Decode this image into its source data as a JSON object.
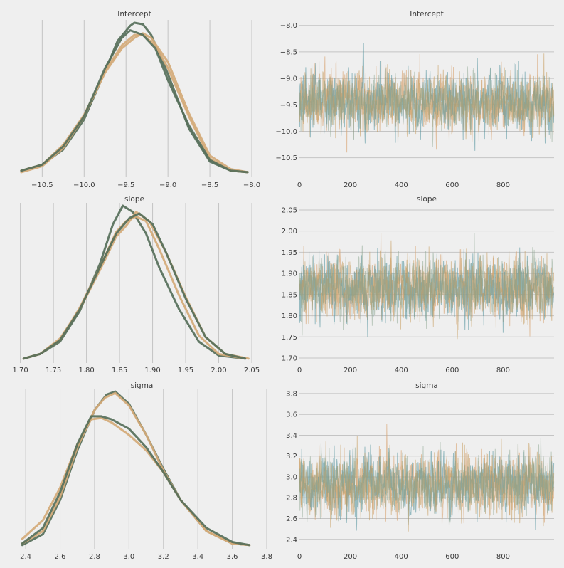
{
  "colors": {
    "background": "#efefef",
    "chain_1": "#d8a87a",
    "chain_2": "#4f8f9a",
    "chain_3": "#c69c5e",
    "chain_4": "#8aa38d",
    "kde_dark": "#566f5a",
    "kde_light": "#d4aa78"
  },
  "chart_data": [
    {
      "id": "intercept-density",
      "type": "line",
      "title": "Intercept",
      "xlim": [
        -10.8,
        -8.0
      ],
      "ylim": [
        0,
        1.0
      ],
      "xticks": [
        -10.5,
        -10.0,
        -9.5,
        -9.0,
        -8.5,
        -8.0
      ],
      "tick_labels": [
        "−10.5",
        "−10.0",
        "−9.5",
        "−9.0",
        "−8.5",
        "−8.0"
      ],
      "grid": "vertical",
      "series": [
        {
          "color": "#566f5a",
          "x": [
            -10.75,
            -10.5,
            -10.25,
            -10.0,
            -9.75,
            -9.6,
            -9.45,
            -9.4,
            -9.3,
            -9.2,
            -9.0,
            -8.75,
            -8.5,
            -8.25,
            -8.05
          ],
          "y": [
            0.02,
            0.06,
            0.16,
            0.36,
            0.68,
            0.88,
            0.98,
            1.0,
            0.99,
            0.92,
            0.66,
            0.3,
            0.08,
            0.02,
            0.01
          ]
        },
        {
          "color": "#d4aa78",
          "x": [
            -10.75,
            -10.5,
            -10.25,
            -10.0,
            -9.75,
            -9.55,
            -9.4,
            -9.3,
            -9.15,
            -9.0,
            -8.75,
            -8.5,
            -8.25,
            -8.05
          ],
          "y": [
            0.01,
            0.05,
            0.17,
            0.38,
            0.68,
            0.85,
            0.92,
            0.92,
            0.85,
            0.7,
            0.38,
            0.1,
            0.02,
            0.01
          ]
        },
        {
          "color": "#d4aa78",
          "x": [
            -10.75,
            -10.5,
            -10.25,
            -10.0,
            -9.75,
            -9.55,
            -9.4,
            -9.3,
            -9.2,
            -9.0,
            -8.75,
            -8.5,
            -8.25,
            -8.05
          ],
          "y": [
            0.02,
            0.06,
            0.19,
            0.39,
            0.67,
            0.83,
            0.9,
            0.93,
            0.9,
            0.74,
            0.4,
            0.12,
            0.03,
            0.01
          ]
        },
        {
          "color": "#566f5a",
          "x": [
            -10.75,
            -10.5,
            -10.25,
            -10.0,
            -9.75,
            -9.55,
            -9.45,
            -9.3,
            -9.15,
            -9.0,
            -8.75,
            -8.5,
            -8.25,
            -8.05
          ],
          "y": [
            0.02,
            0.06,
            0.18,
            0.38,
            0.7,
            0.9,
            0.95,
            0.92,
            0.83,
            0.62,
            0.32,
            0.09,
            0.02,
            0.01
          ]
        }
      ]
    },
    {
      "id": "intercept-trace",
      "type": "line",
      "title": "Intercept",
      "xlim": [
        0,
        1000
      ],
      "ylim": [
        -10.8,
        -7.95
      ],
      "xticks": [
        0,
        200,
        400,
        600,
        800
      ],
      "xtick_labels": [
        "0",
        "200",
        "400",
        "600",
        "800"
      ],
      "yticks": [
        -10.5,
        -10.0,
        -9.5,
        -9.0,
        -8.5,
        -8.0
      ],
      "ytick_labels": [
        "−10.5",
        "−10.0",
        "−9.5",
        "−9.0",
        "−8.5",
        "−8.0"
      ],
      "grid": "horizontal",
      "draws": 1000,
      "chains": 4,
      "center": -9.45,
      "spread": 0.38
    },
    {
      "id": "slope-density",
      "type": "line",
      "title": "slope",
      "xlim": [
        1.695,
        2.05
      ],
      "ylim": [
        0,
        1.0
      ],
      "xticks": [
        1.7,
        1.75,
        1.8,
        1.85,
        1.9,
        1.95,
        2.0,
        2.05
      ],
      "tick_labels": [
        "1.70",
        "1.75",
        "1.80",
        "1.85",
        "1.90",
        "1.95",
        "2.00",
        "2.05"
      ],
      "grid": "vertical",
      "series": [
        {
          "color": "#566f5a",
          "x": [
            1.705,
            1.73,
            1.76,
            1.79,
            1.82,
            1.84,
            1.855,
            1.87,
            1.89,
            1.91,
            1.94,
            1.97,
            2.0,
            2.04
          ],
          "y": [
            0.01,
            0.04,
            0.12,
            0.32,
            0.62,
            0.88,
            1.0,
            0.96,
            0.82,
            0.6,
            0.33,
            0.12,
            0.03,
            0.01
          ]
        },
        {
          "color": "#d4aa78",
          "x": [
            1.705,
            1.73,
            1.76,
            1.79,
            1.82,
            1.845,
            1.86,
            1.875,
            1.89,
            1.91,
            1.94,
            1.97,
            2.0,
            2.04
          ],
          "y": [
            0.01,
            0.04,
            0.13,
            0.34,
            0.6,
            0.83,
            0.9,
            0.93,
            0.9,
            0.72,
            0.42,
            0.16,
            0.04,
            0.01
          ]
        },
        {
          "color": "#d4aa78",
          "x": [
            1.705,
            1.73,
            1.76,
            1.79,
            1.82,
            1.845,
            1.86,
            1.875,
            1.895,
            1.92,
            1.95,
            1.98,
            2.01,
            2.045
          ],
          "y": [
            0.01,
            0.04,
            0.14,
            0.33,
            0.58,
            0.8,
            0.87,
            0.96,
            0.9,
            0.7,
            0.41,
            0.15,
            0.04,
            0.01
          ]
        },
        {
          "color": "#566f5a",
          "x": [
            1.705,
            1.73,
            1.76,
            1.79,
            1.82,
            1.845,
            1.865,
            1.88,
            1.9,
            1.92,
            1.95,
            1.98,
            2.01,
            2.04
          ],
          "y": [
            0.01,
            0.04,
            0.13,
            0.33,
            0.6,
            0.82,
            0.92,
            0.95,
            0.88,
            0.7,
            0.4,
            0.15,
            0.04,
            0.01
          ]
        }
      ]
    },
    {
      "id": "slope-trace",
      "type": "line",
      "title": "slope",
      "xlim": [
        0,
        1000
      ],
      "ylim": [
        1.695,
        2.06
      ],
      "xticks": [
        0,
        200,
        400,
        600,
        800
      ],
      "xtick_labels": [
        "0",
        "200",
        "400",
        "600",
        "800"
      ],
      "yticks": [
        1.7,
        1.75,
        1.8,
        1.85,
        1.9,
        1.95,
        2.0,
        2.05
      ],
      "ytick_labels": [
        "1.70",
        "1.75",
        "1.80",
        "1.85",
        "1.90",
        "1.95",
        "2.00",
        "2.05"
      ],
      "grid": "horizontal",
      "draws": 1000,
      "chains": 4,
      "center": 1.866,
      "spread": 0.05
    },
    {
      "id": "sigma-density",
      "type": "line",
      "title": "sigma",
      "xlim": [
        2.35,
        3.8
      ],
      "ylim": [
        0,
        1.0
      ],
      "xticks": [
        2.4,
        2.6,
        2.8,
        3.0,
        3.2,
        3.4,
        3.6,
        3.8
      ],
      "tick_labels": [
        "2.4",
        "2.6",
        "2.8",
        "3.0",
        "3.2",
        "3.4",
        "3.6",
        "3.8"
      ],
      "grid": "vertical",
      "series": [
        {
          "color": "#566f5a",
          "x": [
            2.38,
            2.5,
            2.6,
            2.7,
            2.8,
            2.87,
            2.92,
            3.0,
            3.1,
            3.2,
            3.3,
            3.45,
            3.6,
            3.7
          ],
          "y": [
            0.01,
            0.08,
            0.3,
            0.62,
            0.88,
            0.98,
            1.0,
            0.92,
            0.72,
            0.5,
            0.3,
            0.1,
            0.02,
            0.01
          ]
        },
        {
          "color": "#d4aa78",
          "x": [
            2.38,
            2.5,
            2.6,
            2.7,
            2.8,
            2.86,
            2.92,
            3.0,
            3.1,
            3.2,
            3.3,
            3.45,
            3.6,
            3.7
          ],
          "y": [
            0.02,
            0.1,
            0.32,
            0.64,
            0.88,
            0.96,
            0.99,
            0.91,
            0.72,
            0.49,
            0.3,
            0.1,
            0.02,
            0.01
          ]
        },
        {
          "color": "#d4aa78",
          "x": [
            2.38,
            2.5,
            2.6,
            2.7,
            2.78,
            2.84,
            2.9,
            3.0,
            3.1,
            3.2,
            3.3,
            3.45,
            3.6,
            3.7
          ],
          "y": [
            0.05,
            0.17,
            0.38,
            0.66,
            0.82,
            0.83,
            0.8,
            0.72,
            0.62,
            0.48,
            0.3,
            0.1,
            0.02,
            0.01
          ]
        },
        {
          "color": "#566f5a",
          "x": [
            2.38,
            2.5,
            2.6,
            2.7,
            2.78,
            2.84,
            2.9,
            3.0,
            3.1,
            3.2,
            3.3,
            3.45,
            3.6,
            3.7
          ],
          "y": [
            0.02,
            0.12,
            0.35,
            0.66,
            0.84,
            0.84,
            0.82,
            0.76,
            0.64,
            0.48,
            0.3,
            0.12,
            0.03,
            0.01
          ]
        }
      ]
    },
    {
      "id": "sigma-trace",
      "type": "line",
      "title": "sigma",
      "xlim": [
        0,
        1000
      ],
      "ylim": [
        2.33,
        3.82
      ],
      "xticks": [
        0,
        200,
        400,
        600,
        800
      ],
      "xtick_labels": [
        "0",
        "200",
        "400",
        "600",
        "800"
      ],
      "yticks": [
        2.4,
        2.6,
        2.8,
        3.0,
        3.2,
        3.4,
        3.6,
        3.8
      ],
      "ytick_labels": [
        "2.4",
        "2.6",
        "2.8",
        "3.0",
        "3.2",
        "3.4",
        "3.6",
        "3.8"
      ],
      "grid": "horizontal",
      "draws": 1000,
      "chains": 4,
      "center": 2.92,
      "spread": 0.2
    }
  ]
}
